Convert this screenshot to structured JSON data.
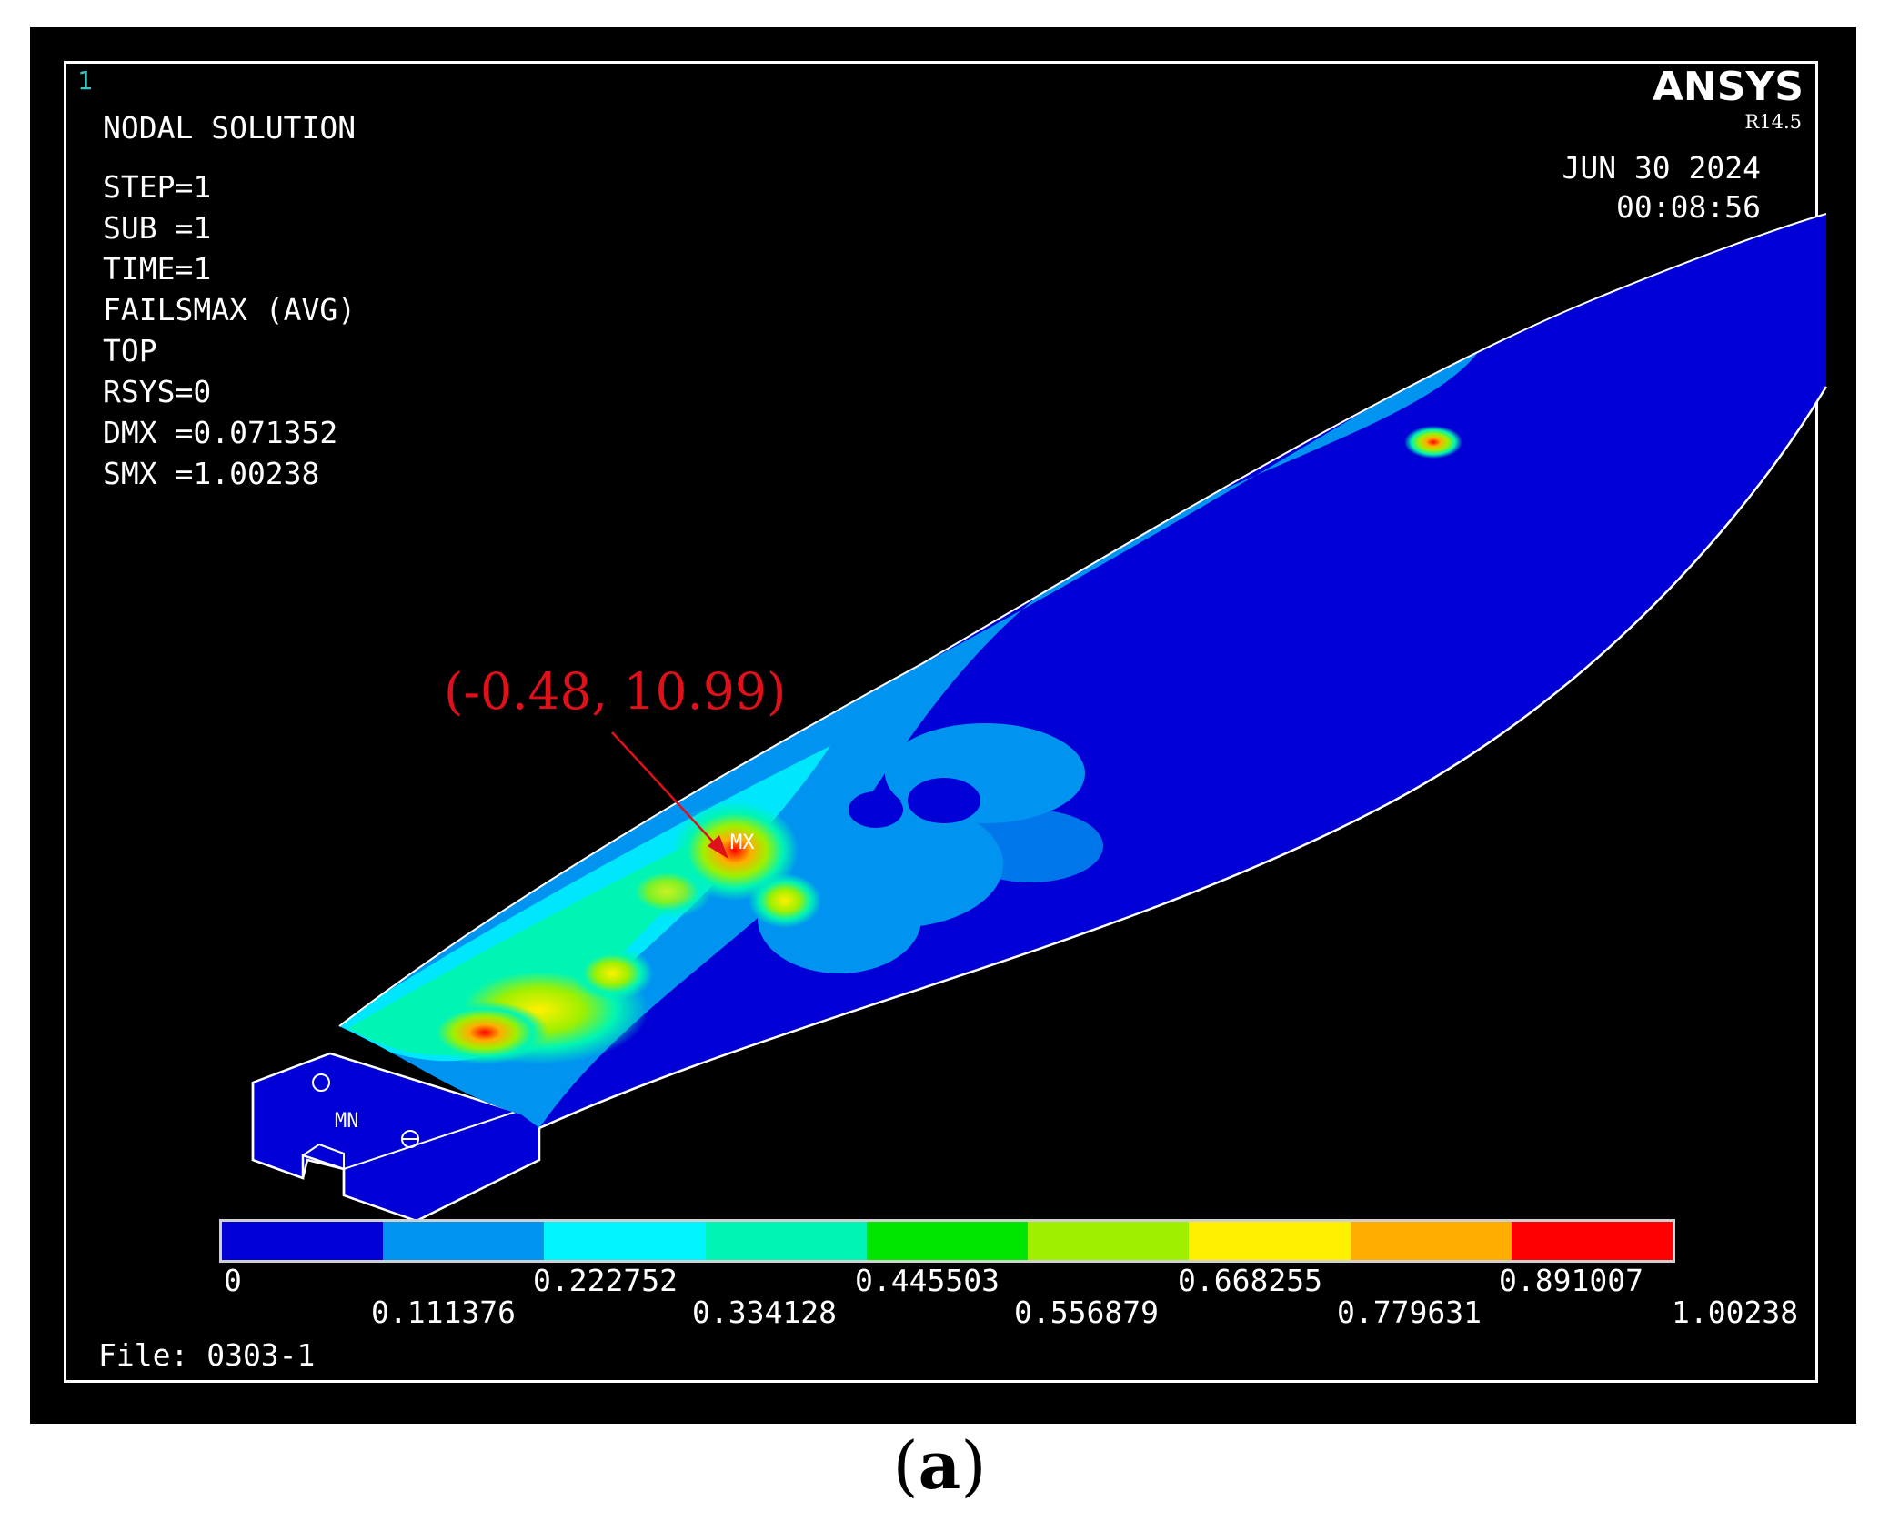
{
  "window_number": "1",
  "brand": "ANSYS",
  "version": "R14.5",
  "date": "JUN 30 2024",
  "time": "00:08:56",
  "solution_title": "NODAL SOLUTION",
  "params": [
    "STEP=1",
    "SUB =1",
    "TIME=1",
    "FAILSMAX (AVG)",
    "TOP",
    "RSYS=0",
    "DMX =0.071352",
    "SMX =1.00238"
  ],
  "annotation": "(-0.48, 10.99)",
  "max_label": "MX",
  "min_label": "MN",
  "legend": {
    "colors": [
      "#0000d6",
      "#0094f0",
      "#00f5ff",
      "#00f5b4",
      "#00e600",
      "#9ef000",
      "#fff000",
      "#ffae00",
      "#ff0000"
    ],
    "labels_top": [
      "0",
      "0.222752",
      "0.445503",
      "0.668255",
      "0.891007"
    ],
    "labels_bottom": [
      "0.111376",
      "0.334128",
      "0.556879",
      "0.779631",
      "1.00238"
    ]
  },
  "file_label": "File: 0303-1",
  "caption_open": "(",
  "caption_letter": "a",
  "caption_close": ")"
}
